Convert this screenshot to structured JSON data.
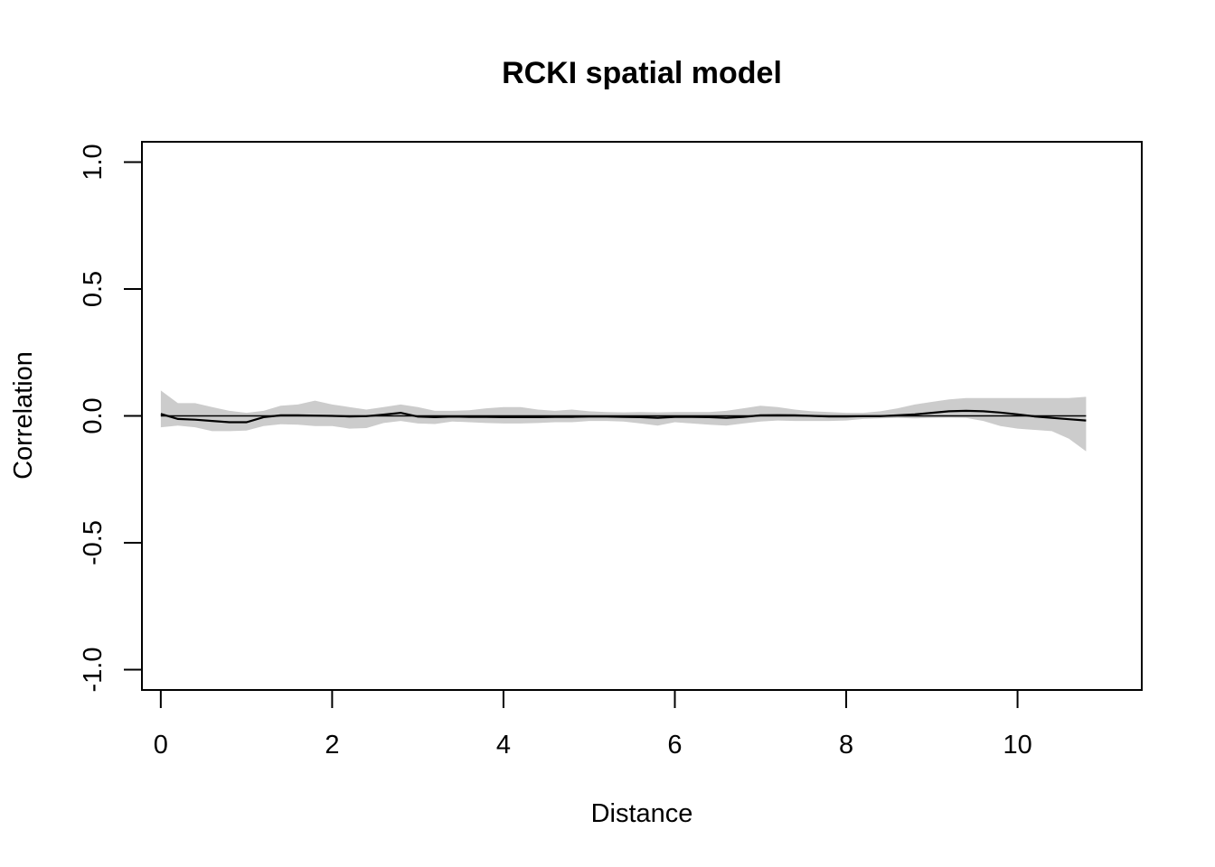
{
  "chart_data": {
    "type": "line",
    "title": "RCKI spatial model",
    "xlabel": "Distance",
    "ylabel": "Correlation",
    "xlim": [
      -0.22,
      11.45
    ],
    "ylim": [
      -1.08,
      1.08
    ],
    "xticks": [
      0,
      2,
      4,
      6,
      8,
      10
    ],
    "xtick_labels": [
      "0",
      "2",
      "4",
      "6",
      "8",
      "10"
    ],
    "yticks": [
      -1.0,
      -0.5,
      0.0,
      0.5,
      1.0
    ],
    "ytick_labels": [
      "-1.0",
      "-0.5",
      "0.0",
      "0.5",
      "1.0"
    ],
    "grid": false,
    "legend": "none",
    "reference_line": 0,
    "band_color": "#cccccc",
    "line_color": "#000000",
    "x": [
      0,
      0.2,
      0.4,
      0.6,
      0.8,
      1.0,
      1.2,
      1.4,
      1.6,
      1.8,
      2.0,
      2.2,
      2.4,
      2.6,
      2.8,
      3.0,
      3.2,
      3.4,
      3.6,
      3.8,
      4.0,
      4.2,
      4.4,
      4.6,
      4.8,
      5.0,
      5.2,
      5.4,
      5.6,
      5.8,
      6.0,
      6.2,
      6.4,
      6.6,
      6.8,
      7.0,
      7.2,
      7.4,
      7.6,
      7.8,
      8.0,
      8.2,
      8.4,
      8.6,
      8.8,
      9.0,
      9.2,
      9.4,
      9.6,
      9.8,
      10.0,
      10.2,
      10.4,
      10.6,
      10.8
    ],
    "series": [
      {
        "values": [
          0.008,
          -0.012,
          -0.015,
          -0.02,
          -0.025,
          -0.025,
          -0.005,
          0.002,
          0.002,
          0.001,
          0.0,
          -0.002,
          -0.001,
          0.005,
          0.012,
          -0.003,
          -0.005,
          -0.003,
          -0.004,
          -0.004,
          -0.005,
          -0.005,
          -0.005,
          -0.004,
          -0.004,
          -0.003,
          -0.003,
          -0.004,
          -0.005,
          -0.008,
          -0.004,
          -0.004,
          -0.005,
          -0.008,
          -0.004,
          0.002,
          0.003,
          0.002,
          0.0,
          -0.002,
          -0.002,
          -0.001,
          -0.001,
          0.002,
          0.006,
          0.012,
          0.018,
          0.02,
          0.018,
          0.013,
          0.006,
          -0.002,
          -0.008,
          -0.013,
          -0.018
        ],
        "lower": [
          -0.045,
          -0.038,
          -0.045,
          -0.06,
          -0.06,
          -0.058,
          -0.04,
          -0.033,
          -0.035,
          -0.04,
          -0.04,
          -0.05,
          -0.048,
          -0.028,
          -0.02,
          -0.03,
          -0.032,
          -0.022,
          -0.025,
          -0.028,
          -0.03,
          -0.03,
          -0.028,
          -0.025,
          -0.025,
          -0.02,
          -0.02,
          -0.022,
          -0.03,
          -0.038,
          -0.025,
          -0.03,
          -0.035,
          -0.038,
          -0.03,
          -0.022,
          -0.018,
          -0.02,
          -0.02,
          -0.02,
          -0.018,
          -0.012,
          -0.01,
          -0.008,
          -0.01,
          -0.008,
          -0.007,
          -0.008,
          -0.02,
          -0.04,
          -0.05,
          -0.055,
          -0.06,
          -0.09,
          -0.14
        ],
        "upper": [
          0.1,
          0.05,
          0.05,
          0.035,
          0.02,
          0.012,
          0.02,
          0.04,
          0.045,
          0.06,
          0.045,
          0.035,
          0.025,
          0.035,
          0.045,
          0.035,
          0.02,
          0.02,
          0.022,
          0.03,
          0.035,
          0.035,
          0.025,
          0.02,
          0.025,
          0.018,
          0.015,
          0.014,
          0.015,
          0.014,
          0.015,
          0.015,
          0.015,
          0.02,
          0.03,
          0.04,
          0.035,
          0.025,
          0.018,
          0.015,
          0.012,
          0.012,
          0.018,
          0.03,
          0.045,
          0.055,
          0.065,
          0.07,
          0.07,
          0.07,
          0.07,
          0.07,
          0.07,
          0.07,
          0.075
        ]
      }
    ]
  }
}
